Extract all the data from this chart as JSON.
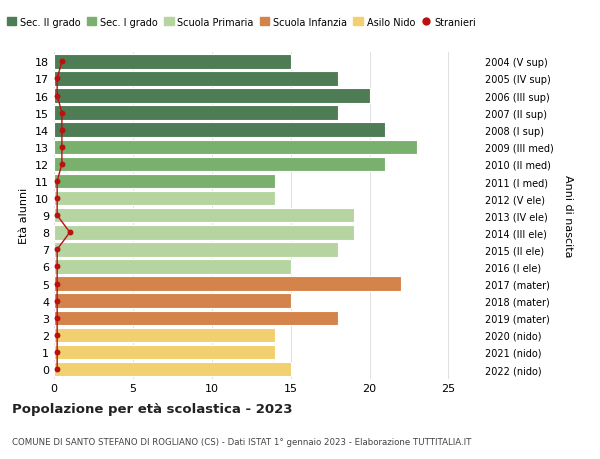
{
  "ages": [
    18,
    17,
    16,
    15,
    14,
    13,
    12,
    11,
    10,
    9,
    8,
    7,
    6,
    5,
    4,
    3,
    2,
    1,
    0
  ],
  "right_labels": [
    "2004 (V sup)",
    "2005 (IV sup)",
    "2006 (III sup)",
    "2007 (II sup)",
    "2008 (I sup)",
    "2009 (III med)",
    "2010 (II med)",
    "2011 (I med)",
    "2012 (V ele)",
    "2013 (IV ele)",
    "2014 (III ele)",
    "2015 (II ele)",
    "2016 (I ele)",
    "2017 (mater)",
    "2018 (mater)",
    "2019 (mater)",
    "2020 (nido)",
    "2021 (nido)",
    "2022 (nido)"
  ],
  "values": [
    15,
    18,
    20,
    18,
    21,
    23,
    21,
    14,
    14,
    19,
    19,
    18,
    15,
    22,
    15,
    18,
    14,
    14,
    15
  ],
  "stranieri_x": [
    0.5,
    0.2,
    0.2,
    0.5,
    0.5,
    0.5,
    0.5,
    0.2,
    0.2,
    0.2,
    1.0,
    0.2,
    0.2,
    0.2,
    0.2,
    0.2,
    0.2,
    0.2,
    0.2
  ],
  "stranieri_present": [
    1,
    1,
    1,
    1,
    1,
    1,
    1,
    1,
    1,
    1,
    1,
    1,
    1,
    1,
    1,
    1,
    1,
    1,
    1
  ],
  "bar_colors": [
    "#4d7c55",
    "#4d7c55",
    "#4d7c55",
    "#4d7c55",
    "#4d7c55",
    "#7ab06e",
    "#7ab06e",
    "#7ab06e",
    "#b5d4a0",
    "#b5d4a0",
    "#b5d4a0",
    "#b5d4a0",
    "#b5d4a0",
    "#d4834a",
    "#d4834a",
    "#d4834a",
    "#f2d070",
    "#f2d070",
    "#f2d070"
  ],
  "legend_labels": [
    "Sec. II grado",
    "Sec. I grado",
    "Scuola Primaria",
    "Scuola Infanzia",
    "Asilo Nido",
    "Stranieri"
  ],
  "legend_colors": [
    "#4d7c55",
    "#7ab06e",
    "#b5d4a0",
    "#d4834a",
    "#f2d070",
    "#bb1111"
  ],
  "ylabel": "Età alunni",
  "right_ylabel": "Anni di nascita",
  "title": "Popolazione per età scolastica - 2023",
  "subtitle": "COMUNE DI SANTO STEFANO DI ROGLIANO (CS) - Dati ISTAT 1° gennaio 2023 - Elaborazione TUTTITALIA.IT",
  "xlim": [
    0,
    27
  ],
  "stranieri_color": "#bb1111",
  "bg_color": "#ffffff",
  "grid_color": "#e0e0e0"
}
